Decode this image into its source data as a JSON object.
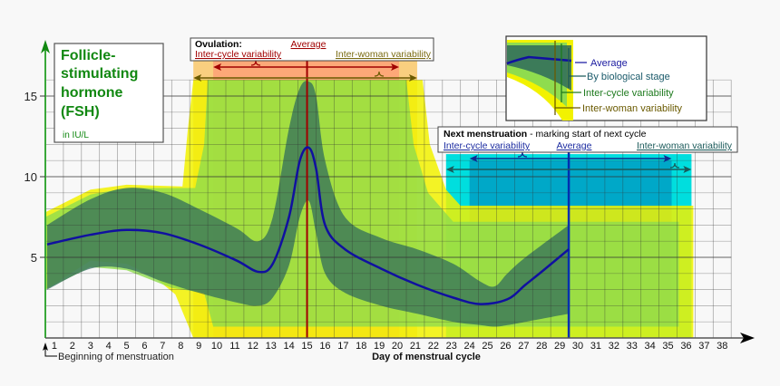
{
  "chart_data": {
    "type": "area",
    "title_lines": [
      "Follicle-",
      "stimulating",
      "hormone",
      "(FSH)"
    ],
    "unit": "in IU/L",
    "xlabel": "Day of menstrual cycle",
    "x_start_label": "Beginning of menstruation",
    "xlim": [
      0,
      38
    ],
    "ylim": [
      0,
      16
    ],
    "x_ticks": [
      "1",
      "2",
      "3",
      "4",
      "5",
      "6",
      "7",
      "8",
      "9",
      "10",
      "11",
      "12",
      "13",
      "14",
      "15",
      "16",
      "17",
      "18",
      "19",
      "20",
      "21",
      "22",
      "23",
      "24",
      "25",
      "26",
      "27",
      "28",
      "29",
      "30",
      "31",
      "32",
      "33",
      "34",
      "35",
      "36",
      "37",
      "38"
    ],
    "y_ticks": [
      5,
      10,
      15
    ],
    "grid": true,
    "colors": {
      "average": "#1010a0",
      "stage_band": "#2e6a5c",
      "inter_cycle_band": "#8fdc4e",
      "inter_woman_band": "#f2f200",
      "ovulation_inter_woman": "#f9cf7f",
      "ovulation_inter_cycle": "#fda878",
      "ovulation_average": "#a00000",
      "menstruation_inter_woman": "#00dede",
      "menstruation_inter_cycle": "#00a8c8",
      "menstruation_average": "#0030b0",
      "axis_y": "#3aa83a",
      "title": "#118811"
    },
    "average": {
      "x": [
        0.1,
        2.5,
        4.5,
        6.5,
        8.5,
        10.6,
        11.8,
        12.6,
        13.5,
        14.1,
        14.6,
        15.0,
        15.5,
        16.6,
        18.6,
        20.6,
        22.6,
        24.1,
        25.6,
        26.6,
        27.6,
        29.0
      ],
      "y": [
        5.8,
        6.4,
        6.7,
        6.5,
        5.8,
        4.8,
        4.1,
        4.6,
        7.5,
        11.0,
        11.8,
        10.5,
        7.0,
        5.5,
        4.3,
        3.3,
        2.5,
        2.1,
        2.4,
        3.3,
        4.2,
        5.5
      ]
    },
    "by_biological_stage": {
      "x": [
        0.1,
        2.5,
        4.5,
        6.5,
        8.5,
        10.6,
        11.8,
        12.6,
        13.5,
        14.1,
        14.6,
        15.0,
        15.5,
        16.6,
        18.6,
        20.6,
        22.6,
        24.1,
        24.9,
        25.6,
        26.6,
        29.0
      ],
      "upper": [
        7.0,
        8.6,
        9.3,
        9.0,
        8.0,
        6.8,
        6.0,
        7.5,
        13.0,
        15.5,
        15.9,
        15.0,
        11.0,
        7.5,
        6.2,
        5.5,
        4.6,
        3.5,
        3.2,
        4.0,
        5.0,
        7.0
      ],
      "lower": [
        3.0,
        4.3,
        4.3,
        3.5,
        2.8,
        2.2,
        2.0,
        2.5,
        4.5,
        7.5,
        8.5,
        6.5,
        4.0,
        2.8,
        2.0,
        1.5,
        1.0,
        0.8,
        0.7,
        0.8,
        1.0,
        1.5
      ]
    },
    "inter_cycle_variability": {
      "upper": {
        "x": [
          0,
          2.5,
          4.5,
          8.3,
          8.8,
          9.0,
          20.0,
          20.4,
          21.2,
          22.6,
          35.1
        ],
        "y": [
          7.5,
          8.9,
          9.3,
          9.3,
          12,
          16,
          16,
          12,
          9,
          7.2,
          7.2
        ]
      },
      "lower": {
        "x": [
          35.1,
          9.3,
          8.8,
          7,
          4.5,
          2.5,
          0
        ],
        "y": [
          0.7,
          0.7,
          2.8,
          3.1,
          4.2,
          4.4,
          3.0
        ]
      }
    },
    "inter_woman_variability": {
      "upper": {
        "x": [
          0,
          2.5,
          4.5,
          7.6,
          7.9,
          8.2,
          20.9,
          21.3,
          22.2,
          23.0,
          35.9
        ],
        "y": [
          7.8,
          9.2,
          9.5,
          9.4,
          13,
          16,
          16,
          12,
          9.2,
          8.2,
          8.2
        ]
      },
      "lower": {
        "x": [
          35.9,
          8.2,
          7.2,
          6,
          4.5,
          2.5,
          0
        ],
        "y": [
          0,
          0,
          2.7,
          3.8,
          4.6,
          4.8,
          3.0
        ]
      }
    },
    "ovulation": {
      "label": "Ovulation:",
      "average_label": "Average",
      "inter_cycle_label": "Inter-cycle variability",
      "inter_woman_label": "Inter-woman variability",
      "average_day": 14.5,
      "inter_cycle_range": [
        9.3,
        19.6
      ],
      "inter_woman_range": [
        8.2,
        20.6
      ]
    },
    "next_menstruation": {
      "label": "Next menstruation",
      "label_suffix": " - marking start of next cycle",
      "inter_cycle_label": "Inter-cycle variability",
      "average_label": "Average",
      "inter_woman_label": "Inter-woman variability",
      "average_day": 29.0,
      "inter_cycle_range": [
        23.5,
        34.7
      ],
      "inter_woman_range": [
        22.2,
        35.8
      ]
    },
    "legend": {
      "average": "Average",
      "by_biological_stage": "By biological stage",
      "inter_cycle": "Inter-cycle variability",
      "inter_woman": "Inter-woman variability",
      "placement": "top-right"
    }
  }
}
